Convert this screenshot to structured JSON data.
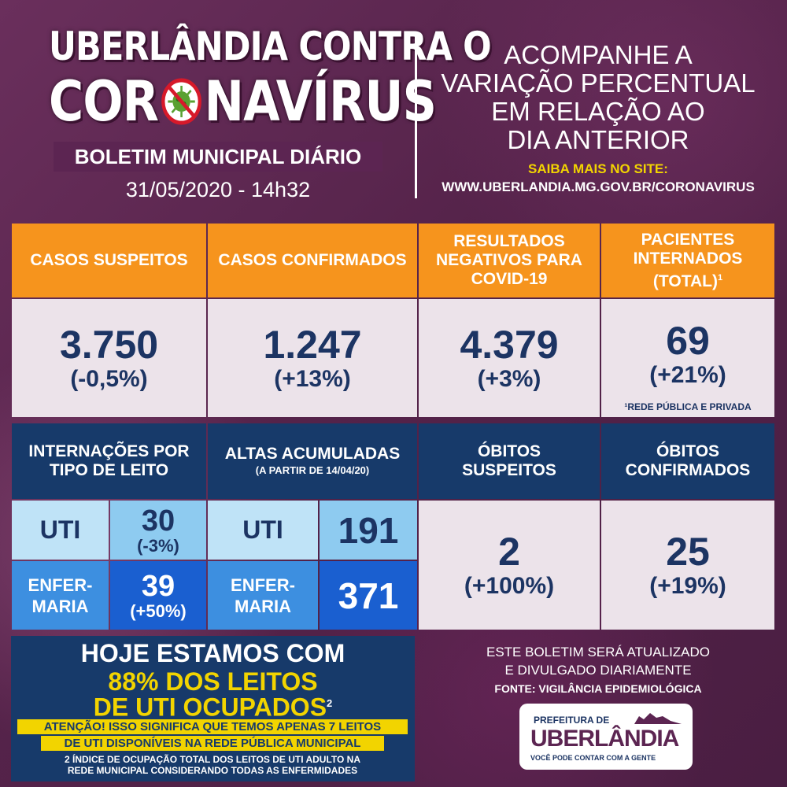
{
  "header": {
    "title_line1": "UBERLÂNDIA CONTRA O",
    "title_line2_a": "COR",
    "title_line2_b": "NAVÍRUS",
    "subtitle": "BOLETIM MUNICIPAL DIÁRIO",
    "datetime": "31/05/2020 - 14h32"
  },
  "info": {
    "lines": [
      "ACOMPANHE A",
      "VARIAÇÃO PERCENTUAL",
      "EM RELAÇÃO AO",
      "DIA ANTERIOR"
    ],
    "saiba": "SAIBA MAIS NO SITE:",
    "site": "WWW.UBERLANDIA.MG.GOV.BR/CORONAVIRUS"
  },
  "top_cards": [
    {
      "label": "CASOS SUSPEITOS",
      "value": "3.750",
      "change": "(-0,5%)"
    },
    {
      "label": "CASOS CONFIRMADOS",
      "value": "1.247",
      "change": "(+13%)"
    },
    {
      "label": "RESULTADOS NEGATIVOS PARA COVID-19",
      "value": "4.379",
      "change": "(+3%)"
    },
    {
      "label": "PACIENTES INTERNADOS (TOTAL)",
      "label_sup": "1",
      "value": "69",
      "change": "(+21%)",
      "footnote": "¹REDE PÚBLICA E PRIVADA"
    }
  ],
  "internacoes": {
    "title": "INTERNAÇÕES POR TIPO DE LEITO",
    "uti_label": "UTI",
    "uti_value": "30",
    "uti_change": "(-3%)",
    "enf_label_1": "ENFER-",
    "enf_label_2": "MARIA",
    "enf_value": "39",
    "enf_change": "(+50%)"
  },
  "altas": {
    "title": "ALTAS ACUMULADAS",
    "subtitle": "(A PARTIR DE 14/04/20)",
    "uti_label": "UTI",
    "uti_value": "191",
    "enf_label_1": "ENFER-",
    "enf_label_2": "MARIA",
    "enf_value": "371"
  },
  "obitos_suspeitos": {
    "title_1": "ÓBITOS",
    "title_2": "SUSPEITOS",
    "value": "2",
    "change": "(+100%)"
  },
  "obitos_confirmados": {
    "title_1": "ÓBITOS",
    "title_2": "CONFIRMADOS",
    "value": "25",
    "change": "(+19%)"
  },
  "today": {
    "line1": "HOJE ESTAMOS COM",
    "line2": "88% DOS LEITOS",
    "line3": "DE UTI OCUPADOS",
    "line3_sup": "2",
    "alert1": "ATENÇÃO! ISSO SIGNIFICA QUE TEMOS APENAS 7 LEITOS",
    "alert2": "DE UTI DISPONÍVEIS NA REDE PÚBLICA MUNICIPAL",
    "note1": "2 ÍNDICE DE OCUPAÇÃO TOTAL DOS LEITOS DE UTI ADULTO NA",
    "note2": "REDE MUNICIPAL CONSIDERANDO TODAS AS ENFERMIDADES"
  },
  "footer": {
    "update1": "ESTE BOLETIM SERÁ ATUALIZADO",
    "update2": "E DIVULGADO DIARIAMENTE",
    "fonte": "FONTE: VIGILÂNCIA EPIDEMIOLÓGICA",
    "logo_top": "PREFEITURA DE",
    "logo_main": "UBERLÂNDIA",
    "logo_tag": "VOCÊ PODE CONTAR COM A GENTE"
  },
  "colors": {
    "orange": "#f6941d",
    "navy": "#173a6a",
    "yellow": "#f2d400",
    "card_bg": "#ece3ea",
    "light_blue": "#8ecbf0",
    "mid_blue": "#3d8fe0"
  }
}
